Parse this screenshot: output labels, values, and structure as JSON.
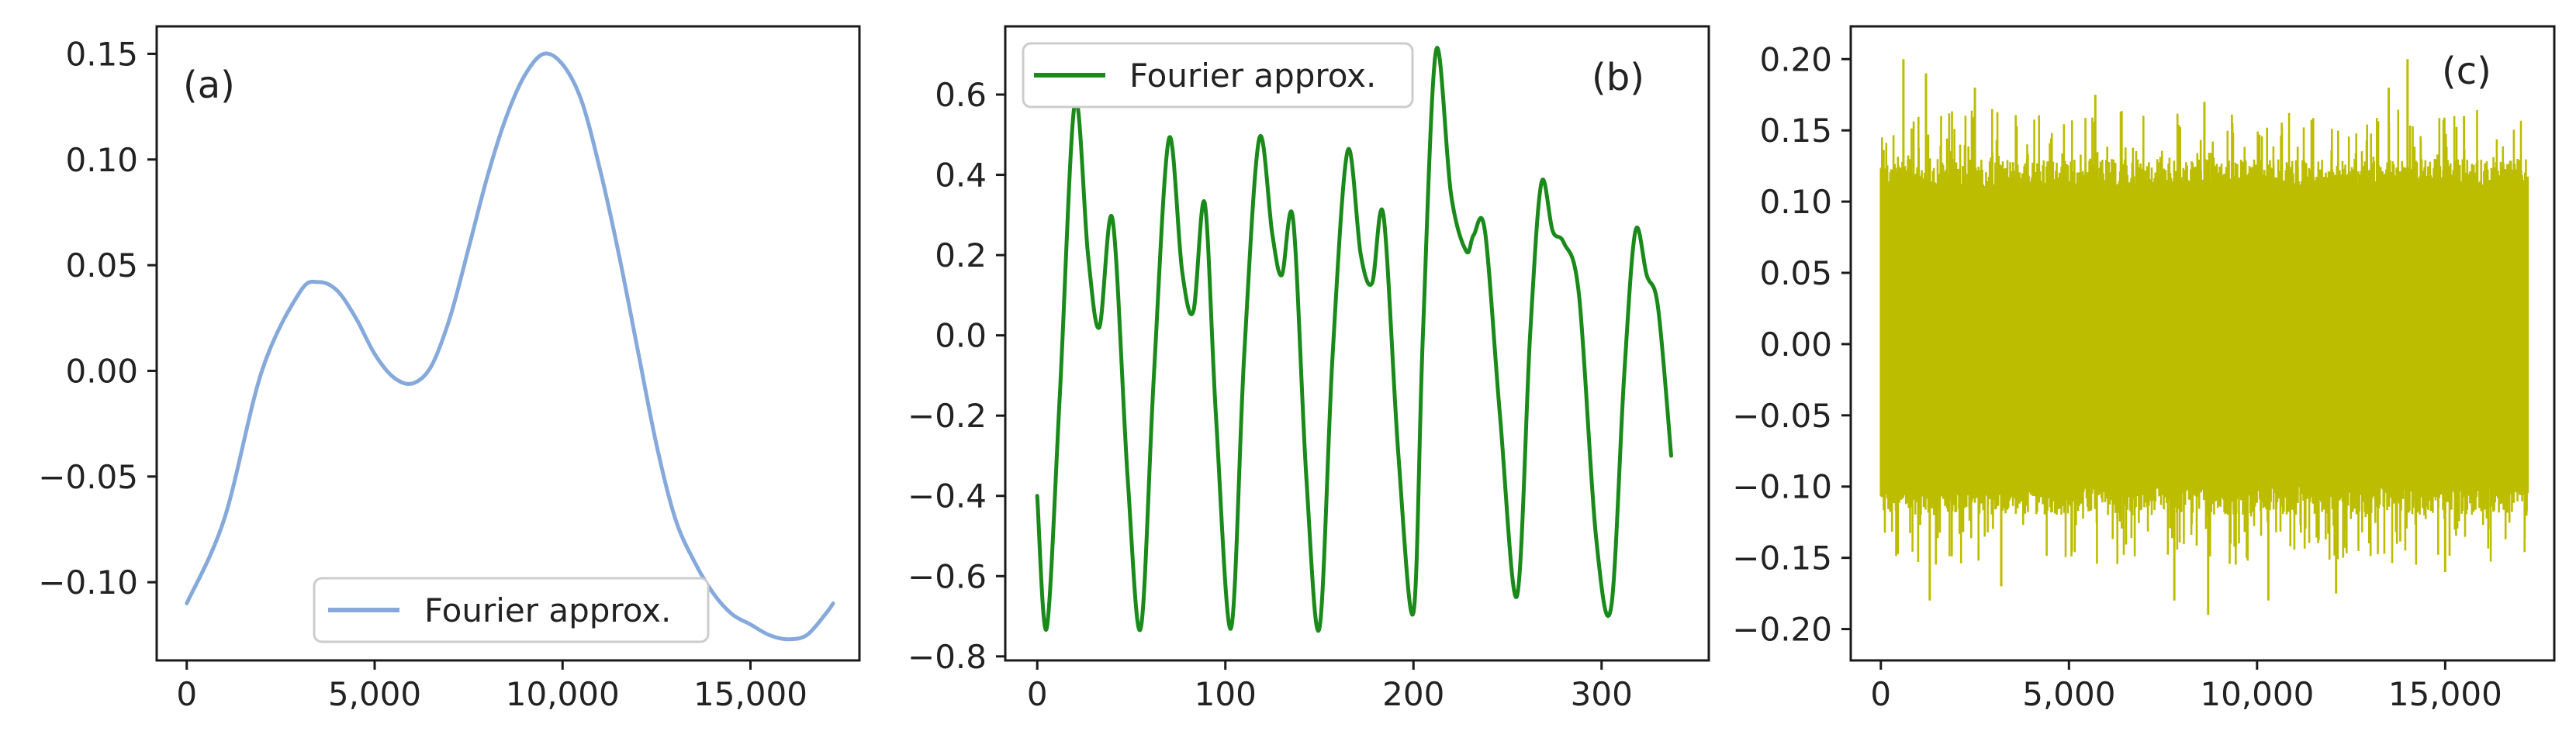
{
  "chart_data": [
    {
      "panel_label": "(a)",
      "type": "line",
      "xlim": [
        -800,
        17900
      ],
      "ylim": [
        -0.137,
        0.163
      ],
      "x_ticks": [
        0,
        5000,
        10000,
        15000
      ],
      "x_tick_labels": [
        "0",
        "5,000",
        "10,000",
        "15,000"
      ],
      "y_ticks": [
        0.15,
        0.1,
        0.05,
        0.0,
        -0.05,
        -0.1
      ],
      "y_tick_labels": [
        "0.15",
        "0.10",
        "0.05",
        "0.00",
        "−0.05",
        "−0.10"
      ],
      "legend": {
        "position": "lower-right"
      },
      "series": [
        {
          "name": "Fourier approx.",
          "color": "#86a9db",
          "x": [
            0,
            1000,
            2000,
            3000,
            3500,
            4000,
            4500,
            5000,
            5500,
            6000,
            6500,
            7000,
            7500,
            8000,
            8500,
            9000,
            9500,
            10000,
            10500,
            11000,
            11500,
            12000,
            12500,
            13000,
            13500,
            14000,
            14500,
            15000,
            15500,
            16000,
            16500,
            17000,
            17200
          ],
          "y": [
            -0.11,
            -0.07,
            0.0,
            0.037,
            0.042,
            0.038,
            0.025,
            0.008,
            -0.003,
            -0.006,
            0.002,
            0.025,
            0.058,
            0.092,
            0.12,
            0.14,
            0.15,
            0.145,
            0.128,
            0.095,
            0.055,
            0.01,
            -0.035,
            -0.07,
            -0.09,
            -0.105,
            -0.115,
            -0.12,
            -0.125,
            -0.127,
            -0.125,
            -0.115,
            -0.11
          ]
        }
      ]
    },
    {
      "panel_label": "(b)",
      "type": "line",
      "xlim": [
        -17,
        357
      ],
      "ylim": [
        -0.81,
        0.77
      ],
      "x_ticks": [
        0,
        100,
        200,
        300
      ],
      "x_tick_labels": [
        "0",
        "100",
        "200",
        "300"
      ],
      "y_ticks": [
        0.6,
        0.4,
        0.2,
        0.0,
        -0.2,
        -0.4,
        -0.6,
        -0.8
      ],
      "y_tick_labels": [
        "0.6",
        "0.4",
        "0.2",
        "0.0",
        "−0.2",
        "−0.4",
        "−0.6",
        "−0.8"
      ],
      "legend": {
        "position": "top-left"
      },
      "series": [
        {
          "name": "Fourier approx.",
          "color": "#1a8a1a",
          "x": [
            0,
            5,
            12,
            20,
            27,
            33,
            40,
            48,
            55,
            62,
            70,
            77,
            83,
            89,
            95,
            103,
            110,
            118,
            125,
            130,
            136,
            143,
            150,
            157,
            165,
            172,
            178,
            184,
            192,
            200,
            205,
            212,
            220,
            228,
            232,
            238,
            246,
            255,
            262,
            268,
            274,
            280,
            288,
            297,
            305,
            312,
            318,
            324,
            330,
            337
          ],
          "y": [
            -0.4,
            -0.73,
            -0.15,
            0.58,
            0.2,
            0.02,
            0.29,
            -0.35,
            -0.73,
            -0.1,
            0.49,
            0.16,
            0.06,
            0.33,
            -0.2,
            -0.73,
            -0.05,
            0.49,
            0.25,
            0.15,
            0.29,
            -0.35,
            -0.73,
            -0.05,
            0.46,
            0.2,
            0.13,
            0.3,
            -0.3,
            -0.69,
            0.0,
            0.71,
            0.35,
            0.21,
            0.25,
            0.26,
            -0.2,
            -0.65,
            0.0,
            0.38,
            0.26,
            0.23,
            0.1,
            -0.5,
            -0.68,
            -0.1,
            0.26,
            0.15,
            0.07,
            -0.3
          ]
        }
      ]
    },
    {
      "panel_label": "(c)",
      "type": "line",
      "xlim": [
        -800,
        17900
      ],
      "ylim": [
        -0.222,
        0.223
      ],
      "x_ticks": [
        0,
        5000,
        10000,
        15000
      ],
      "x_tick_labels": [
        "0",
        "5,000",
        "10,000",
        "15,000"
      ],
      "y_ticks": [
        0.2,
        0.15,
        0.1,
        0.05,
        0.0,
        -0.05,
        -0.1,
        -0.15,
        -0.2
      ],
      "y_tick_labels": [
        "0.20",
        "0.15",
        "0.10",
        "0.05",
        "0.00",
        "−0.05",
        "−0.10",
        "−0.15",
        "−0.20"
      ],
      "series": [
        {
          "color": "#bdbd00",
          "x": [
            0,
            17200
          ],
          "typical_range": [
            -0.12,
            0.13
          ],
          "extreme_range": [
            -0.19,
            0.2
          ],
          "peaks": [
            [
              600,
              0.2
            ],
            [
              1200,
              0.19
            ],
            [
              2500,
              0.18
            ],
            [
              5700,
              0.175
            ],
            [
              8600,
              0.17
            ],
            [
              13500,
              0.18
            ],
            [
              14000,
              0.2
            ],
            [
              15500,
              0.16
            ]
          ],
          "troughs": [
            [
              1300,
              -0.18
            ],
            [
              3200,
              -0.17
            ],
            [
              7800,
              -0.18
            ],
            [
              8700,
              -0.19
            ],
            [
              10300,
              -0.18
            ],
            [
              12100,
              -0.175
            ],
            [
              15000,
              -0.16
            ]
          ]
        }
      ]
    }
  ]
}
